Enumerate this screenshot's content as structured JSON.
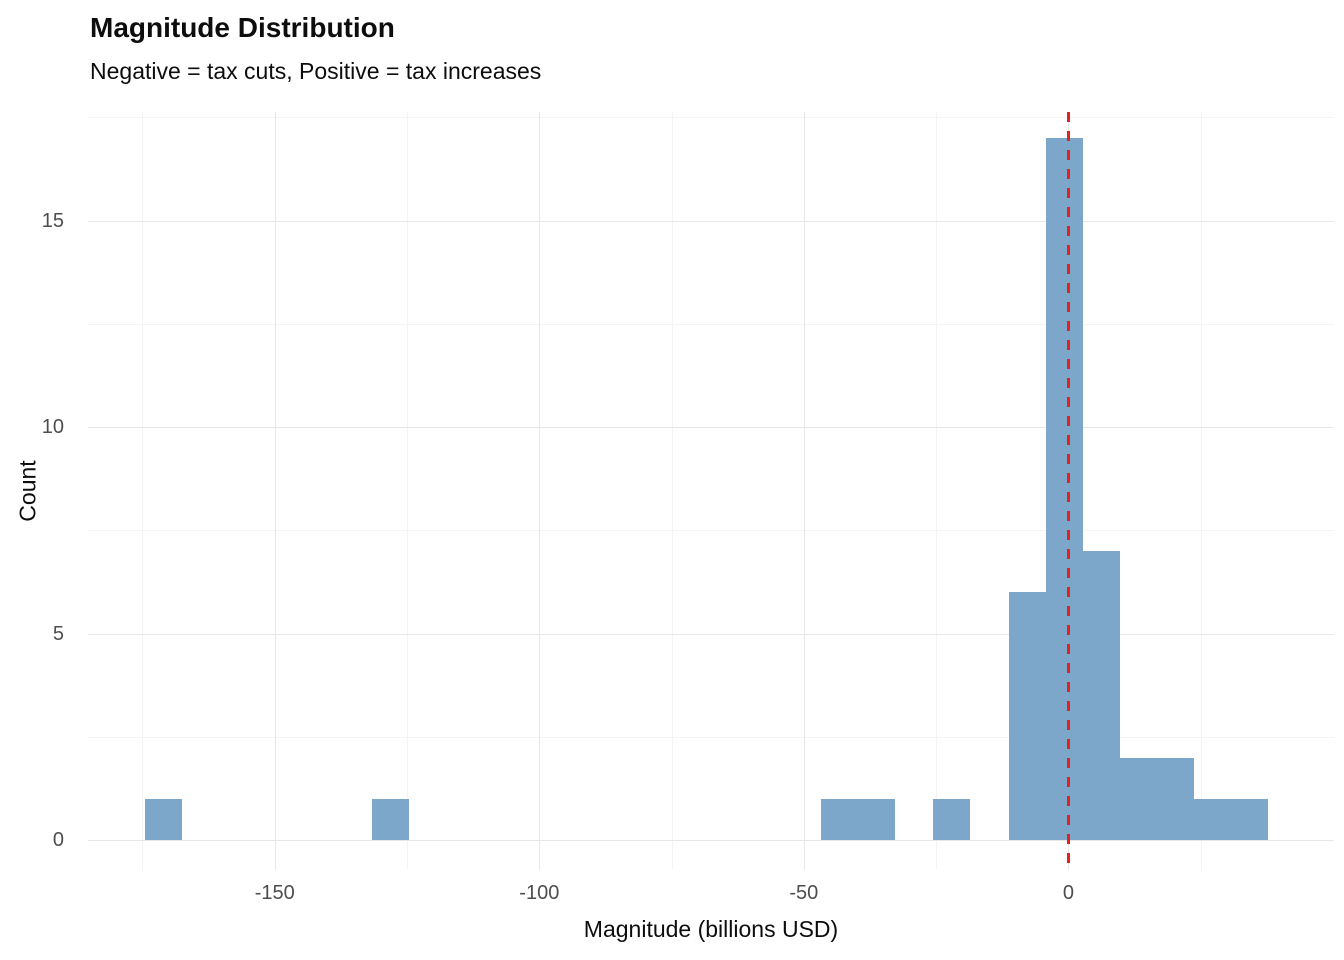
{
  "title": "Magnitude Distribution",
  "subtitle": "Negative = tax cuts, Positive = tax increases",
  "chart_data": {
    "type": "histogram",
    "title": "Magnitude Distribution",
    "subtitle": "Negative = tax cuts, Positive = tax increases",
    "xlabel": "Magnitude (billions USD)",
    "ylabel": "Count",
    "xlim": [
      -185.3,
      50.2
    ],
    "ylim": [
      -0.72,
      17.63
    ],
    "x_major_ticks": [
      -150,
      -100,
      -50,
      0
    ],
    "x_minor_ticks": [
      -175,
      -125,
      -75,
      -25,
      25
    ],
    "y_major_ticks": [
      0,
      5,
      10,
      15
    ],
    "y_minor_ticks": [
      2.5,
      7.5,
      12.5,
      17.5
    ],
    "bins": [
      {
        "x0": -174.6,
        "x1": -167.6,
        "count": 1
      },
      {
        "x0": -131.6,
        "x1": -124.6,
        "count": 1
      },
      {
        "x0": -46.7,
        "x1": -39.7,
        "count": 1
      },
      {
        "x0": -39.7,
        "x1": -32.7,
        "count": 1
      },
      {
        "x0": -25.6,
        "x1": -18.6,
        "count": 1
      },
      {
        "x0": -11.3,
        "x1": -4.3,
        "count": 6
      },
      {
        "x0": -4.3,
        "x1": 2.7,
        "count": 17
      },
      {
        "x0": 2.7,
        "x1": 9.7,
        "count": 7
      },
      {
        "x0": 9.7,
        "x1": 16.7,
        "count": 2
      },
      {
        "x0": 16.7,
        "x1": 23.7,
        "count": 2
      },
      {
        "x0": 23.7,
        "x1": 30.7,
        "count": 1
      },
      {
        "x0": 30.7,
        "x1": 37.7,
        "count": 1
      }
    ],
    "total_count": 41,
    "bar_color": "#7da7ca",
    "vline": {
      "x": 0,
      "color": "#e4211c",
      "style": "dashed"
    },
    "grid": true,
    "legend": false,
    "background": "#ffffff"
  }
}
